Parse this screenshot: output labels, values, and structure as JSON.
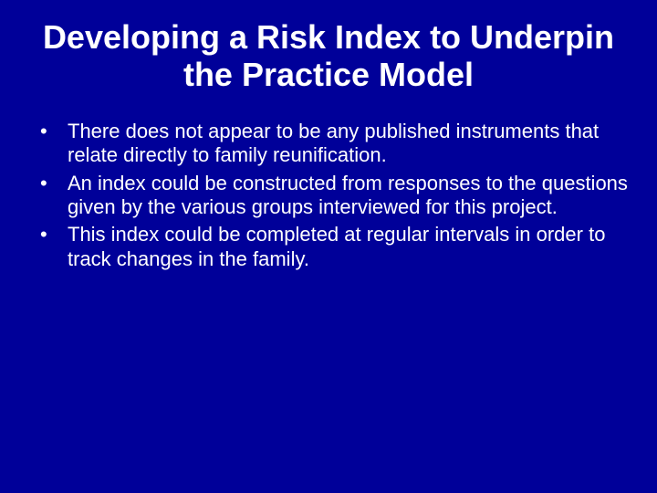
{
  "slide": {
    "background_color": "#000099",
    "text_color": "#ffffff",
    "title_fontsize": 36,
    "body_fontsize": 22,
    "font_family": "Arial",
    "title": "Developing a Risk Index to Underpin the Practice Model",
    "bullets": [
      "There does not appear to be any published instruments that relate directly to family reunification.",
      "An index could be constructed from responses to the questions given by the various groups interviewed for this project.",
      "This index could be completed at regular intervals in order to track changes in the family."
    ]
  }
}
